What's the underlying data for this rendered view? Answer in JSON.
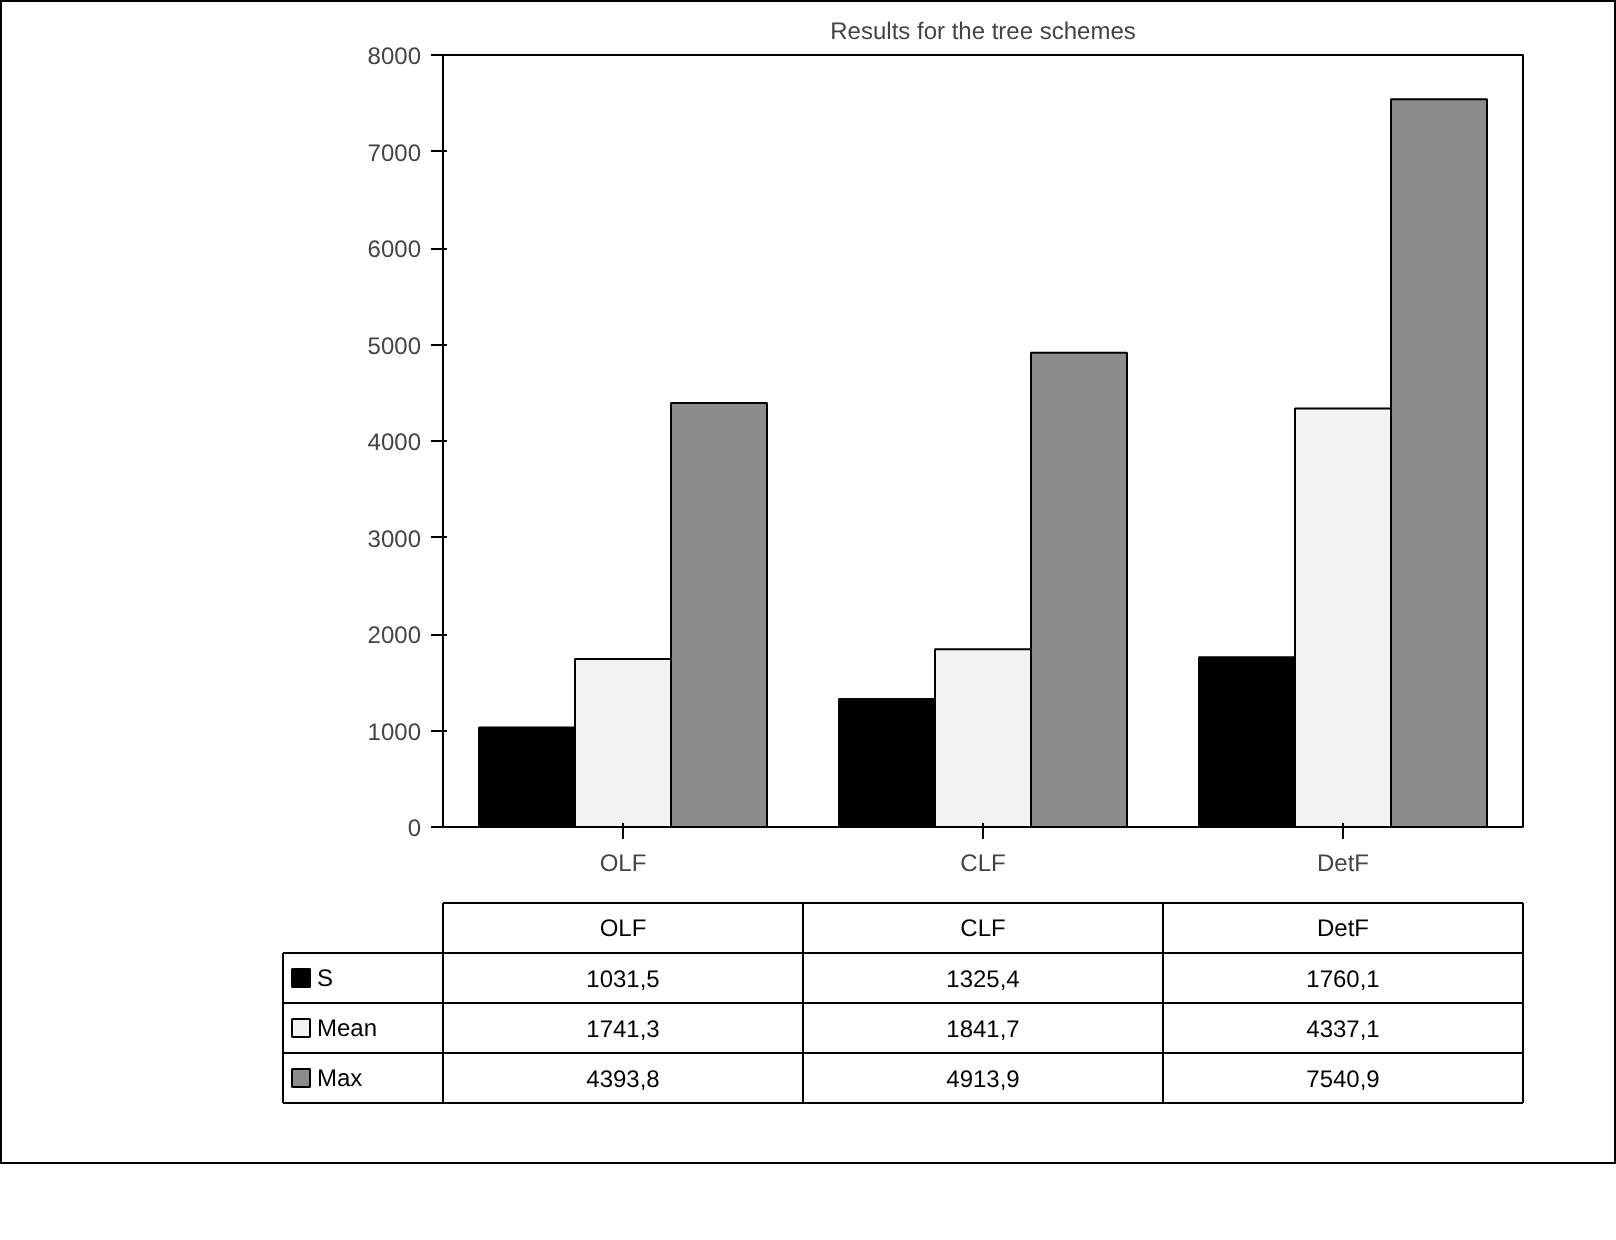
{
  "chart_data": {
    "type": "bar",
    "title": "Results for the tree schemes",
    "categories": [
      "OLF",
      "CLF",
      "DetF"
    ],
    "series": [
      {
        "name": "S",
        "color": "#000000",
        "values": [
          1031.5,
          1325.4,
          1760.1
        ],
        "value_labels": [
          "1031,5",
          "1325,4",
          "1760,1"
        ]
      },
      {
        "name": "Mean",
        "color": "#f2f2f2",
        "values": [
          1741.3,
          1841.7,
          4337.1
        ],
        "value_labels": [
          "1741,3",
          "1841,7",
          "4337,1"
        ]
      },
      {
        "name": "Max",
        "color": "#8c8c8c",
        "values": [
          4393.8,
          4913.9,
          7540.9
        ],
        "value_labels": [
          "4393,8",
          "4913,9",
          "7540,9"
        ]
      }
    ],
    "ylim": [
      0,
      8000
    ],
    "yticks": [
      0,
      1000,
      2000,
      3000,
      4000,
      5000,
      6000,
      7000,
      8000
    ],
    "grid": false,
    "legend": "bottom"
  }
}
